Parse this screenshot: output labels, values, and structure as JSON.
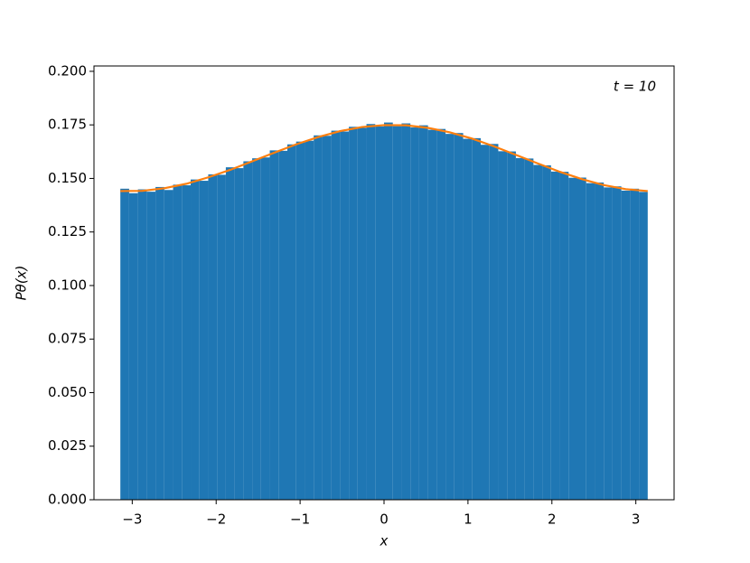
{
  "chart_data": {
    "type": "histogram",
    "xlabel": "x",
    "ylabel": "Pθ(x)",
    "annotation": "t = 10",
    "color": "#1f77b4",
    "bins": [
      -3.1416,
      -3.0369,
      -2.9322,
      -2.8274,
      -2.7227,
      -2.618,
      -2.5133,
      -2.4086,
      -2.3038,
      -2.1991,
      -2.0944,
      -1.9897,
      -1.885,
      -1.7802,
      -1.6755,
      -1.5708,
      -1.4661,
      -1.3614,
      -1.2566,
      -1.1519,
      -1.0472,
      -0.9425,
      -0.8378,
      -0.733,
      -0.6283,
      -0.5236,
      -0.4189,
      -0.3142,
      -0.2094,
      -0.1047,
      0,
      0.1047,
      0.2094,
      0.3142,
      0.4189,
      0.5236,
      0.6283,
      0.733,
      0.8378,
      0.9425,
      1.0472,
      1.1519,
      1.2566,
      1.3614,
      1.4661,
      1.5708,
      1.6755,
      1.7802,
      1.885,
      1.9897,
      2.0944,
      2.1991,
      2.3038,
      2.4086,
      2.5133,
      2.618,
      2.7227,
      2.8274,
      2.9322,
      3.0369,
      3.1416
    ],
    "values": [
      0.1452,
      0.1431,
      0.1449,
      0.1438,
      0.146,
      0.1446,
      0.1471,
      0.1468,
      0.1495,
      0.1489,
      0.1519,
      0.1517,
      0.1552,
      0.1548,
      0.158,
      0.1594,
      0.1598,
      0.1631,
      0.1629,
      0.1659,
      0.1672,
      0.1676,
      0.1701,
      0.1699,
      0.1723,
      0.1719,
      0.1741,
      0.1736,
      0.1754,
      0.1743,
      0.1761,
      0.1744,
      0.1757,
      0.1738,
      0.1748,
      0.1727,
      0.1731,
      0.1708,
      0.1712,
      0.1685,
      0.1688,
      0.1657,
      0.1661,
      0.1627,
      0.1626,
      0.1595,
      0.1593,
      0.1563,
      0.1561,
      0.1532,
      0.1531,
      0.1503,
      0.1504,
      0.1478,
      0.1481,
      0.1458,
      0.1463,
      0.1443,
      0.1452,
      0.1437
    ],
    "curve": {
      "type": "line",
      "color": "#ff7f0e",
      "x": [
        -3.1416,
        -2.8798,
        -2.618,
        -2.3562,
        -2.0944,
        -1.8326,
        -1.5708,
        -1.309,
        -1.0472,
        -0.7854,
        -0.5236,
        -0.2618,
        0,
        0.2618,
        0.5236,
        0.7854,
        1.0472,
        1.309,
        1.5708,
        1.8326,
        2.0944,
        2.3562,
        2.618,
        2.8798,
        3.1416
      ],
      "values": [
        0.1441,
        0.1442,
        0.1454,
        0.1475,
        0.1505,
        0.154,
        0.158,
        0.162,
        0.1659,
        0.1693,
        0.1721,
        0.174,
        0.1749,
        0.1748,
        0.1736,
        0.1715,
        0.1686,
        0.165,
        0.161,
        0.157,
        0.1531,
        0.1497,
        0.1469,
        0.145,
        0.1441
      ]
    },
    "xlim": [
      -3.4558,
      3.4558
    ],
    "ylim": [
      0,
      0.2025
    ],
    "xticks": [
      {
        "value": -3,
        "label": "−3"
      },
      {
        "value": -2,
        "label": "−2"
      },
      {
        "value": -1,
        "label": "−1"
      },
      0,
      1,
      2,
      3
    ],
    "yticks": [
      {
        "value": 0,
        "label": "0.000"
      },
      {
        "value": 0.025,
        "label": "0.025"
      },
      {
        "value": 0.05,
        "label": "0.050"
      },
      {
        "value": 0.075,
        "label": "0.075"
      },
      {
        "value": 0.1,
        "label": "0.100"
      },
      {
        "value": 0.125,
        "label": "0.125"
      },
      {
        "value": 0.15,
        "label": "0.150"
      },
      {
        "value": 0.175,
        "label": "0.175"
      },
      {
        "value": 0.2,
        "label": "0.200"
      }
    ]
  }
}
